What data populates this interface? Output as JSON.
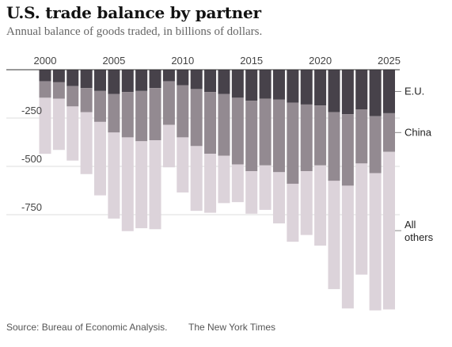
{
  "title": "U.S. trade balance by partner",
  "subtitle": "Annual balance of goods traded, in billions of dollars.",
  "source": "Source: Bureau of Economic Analysis.",
  "credit": "The New York Times",
  "colors": {
    "eu": "#47424a",
    "china": "#938a91",
    "all_others": "#dcd3da",
    "gridline": "#dcdcdc",
    "zeroline": "#333333"
  },
  "chart_data": {
    "type": "bar",
    "stacked": true,
    "title": "U.S. trade balance by partner",
    "subtitle": "Annual balance of goods traded, in billions of dollars.",
    "x": [
      2000,
      2001,
      2002,
      2003,
      2004,
      2005,
      2006,
      2007,
      2008,
      2009,
      2010,
      2011,
      2012,
      2013,
      2014,
      2015,
      2016,
      2017,
      2018,
      2019,
      2020,
      2021,
      2022,
      2023,
      2024,
      2025
    ],
    "x_ticks": [
      "2000",
      "2005",
      "2010",
      "2015",
      "2020",
      "2025"
    ],
    "y_ticks": [
      "-250",
      "-500",
      "-750"
    ],
    "y_tick_values": [
      -250,
      -500,
      -750
    ],
    "ylim": [
      -1240,
      0
    ],
    "grid": true,
    "legend": "right, labels beside last bar",
    "series": [
      {
        "name": "E.U.",
        "values": [
          -60,
          -65,
          -85,
          -95,
          -110,
          -125,
          -115,
          -110,
          -95,
          -60,
          -80,
          -100,
          -115,
          -125,
          -145,
          -160,
          -150,
          -155,
          -170,
          -180,
          -185,
          -220,
          -230,
          -205,
          -240,
          -225
        ]
      },
      {
        "name": "China",
        "values": [
          -85,
          -85,
          -105,
          -125,
          -160,
          -200,
          -235,
          -260,
          -270,
          -225,
          -270,
          -295,
          -320,
          -320,
          -345,
          -365,
          -345,
          -375,
          -420,
          -345,
          -310,
          -355,
          -370,
          -280,
          -295,
          -200
        ]
      },
      {
        "name": "All others",
        "values": [
          -290,
          -265,
          -280,
          -320,
          -380,
          -445,
          -485,
          -450,
          -460,
          -220,
          -285,
          -335,
          -305,
          -245,
          -195,
          -220,
          -230,
          -265,
          -300,
          -330,
          -415,
          -560,
          -635,
          -575,
          -710,
          -815
        ]
      }
    ]
  }
}
